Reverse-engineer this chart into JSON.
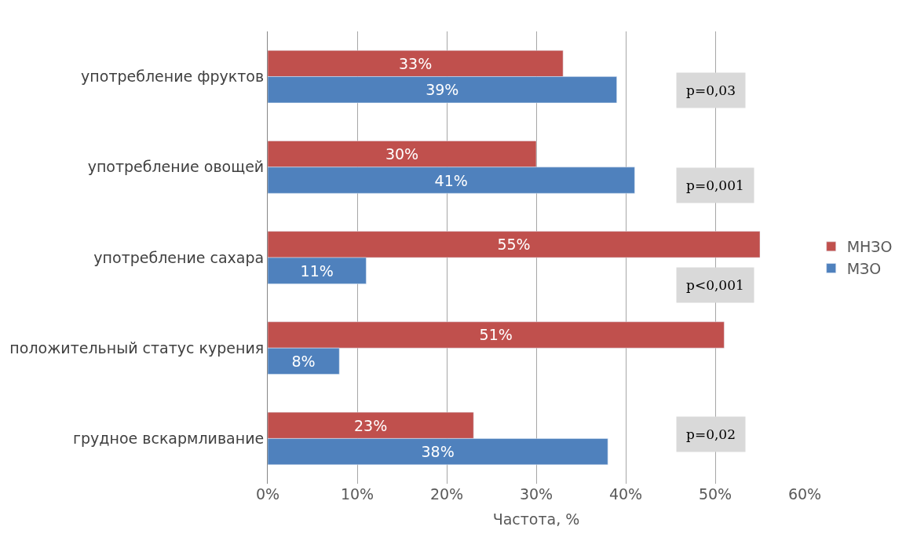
{
  "chart_data": {
    "type": "bar",
    "orientation": "horizontal",
    "xlabel": "Частота, %",
    "categories": [
      "употребление фруктов",
      "употребление овощей",
      "употребление сахара",
      "положительный статус курения",
      "грудное вскармливание"
    ],
    "series": [
      {
        "name": "МНЗО",
        "color": "#c0504d",
        "values": [
          33,
          30,
          55,
          51,
          23
        ],
        "value_labels": [
          "33%",
          "30%",
          "55%",
          "51%",
          "23%"
        ]
      },
      {
        "name": "МЗО",
        "color": "#4f81bd",
        "values": [
          39,
          41,
          11,
          8,
          38
        ],
        "value_labels": [
          "39%",
          "41%",
          "11%",
          "8%",
          "38%"
        ]
      }
    ],
    "xlim": [
      0,
      60
    ],
    "xticks": [
      {
        "value": 0,
        "label": "0%"
      },
      {
        "value": 10,
        "label": "10%"
      },
      {
        "value": 20,
        "label": "20%"
      },
      {
        "value": 30,
        "label": "30%"
      },
      {
        "value": 40,
        "label": "40%"
      },
      {
        "value": 50,
        "label": "50%"
      },
      {
        "value": 60,
        "label": "60%"
      }
    ],
    "grid": "x",
    "legend": "right",
    "annotations": [
      "p=0,03",
      "p=0,001",
      "p<0,001",
      "p=0,02"
    ]
  }
}
